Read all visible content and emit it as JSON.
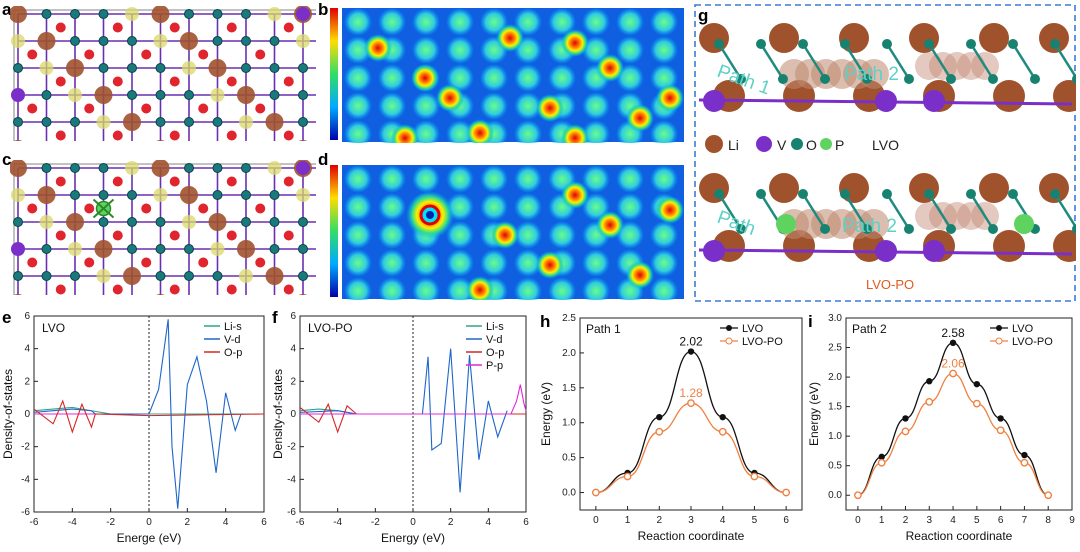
{
  "panel_labels": {
    "a": "a",
    "b": "b",
    "c": "c",
    "d": "d",
    "e": "e",
    "f": "f",
    "g": "g",
    "h": "h",
    "i": "i"
  },
  "structure_legend": {
    "li": "Li",
    "v": "V",
    "o": "O",
    "p": "P"
  },
  "structure_titles": {
    "top": "LVO",
    "bottom": "LVO-PO"
  },
  "path_labels": {
    "path1": "Path 1",
    "path2": "Path 2",
    "path1_bottom": "Path"
  },
  "colors": {
    "li": "#a0522d",
    "v": "#7b2fc9",
    "o": "#17826f",
    "p": "#5fd35f",
    "lvo_series": "#111111",
    "lvopo_series": "#f08040",
    "dashed_box": "#3a7bd5"
  },
  "chart_data": [
    {
      "id": "e",
      "type": "line",
      "panel_text": "LVO",
      "xlabel": "Energe (eV)",
      "ylabel": "Density-of-states",
      "xlim": [
        -6,
        6
      ],
      "ylim": [
        -6,
        6
      ],
      "xticks": [
        -6,
        -4,
        -2,
        0,
        2,
        4,
        6
      ],
      "yticks": [
        -6,
        -4,
        -2,
        0,
        2,
        4,
        6
      ],
      "legend": [
        "Li-s",
        "V-d",
        "O-p"
      ],
      "series": [
        {
          "name": "Li-s",
          "color": "#2ca58d",
          "x": [
            -6,
            -5,
            -4,
            -3,
            -2,
            0,
            2,
            4,
            6
          ],
          "values": [
            0.2,
            0.3,
            0.4,
            0.2,
            0,
            0,
            0,
            0,
            0
          ]
        },
        {
          "name": "V-d",
          "color": "#1f66c9",
          "x": [
            -6,
            -5,
            -4,
            -3,
            -2.8,
            0,
            0.5,
            1,
            1.2,
            1.5,
            2,
            2.5,
            3,
            3.5,
            4,
            4.5,
            4.8
          ],
          "values": [
            0.1,
            0.2,
            0.3,
            0.2,
            0,
            0,
            1.5,
            5.8,
            -2,
            -5.8,
            1.8,
            3.5,
            0.8,
            -3.6,
            1.3,
            -1,
            0
          ]
        },
        {
          "name": "O-p",
          "color": "#d62728",
          "x": [
            -6,
            -5,
            -4.5,
            -4,
            -3.5,
            -3,
            -2.8,
            0,
            6
          ],
          "values": [
            0.3,
            -0.6,
            0.8,
            -1.1,
            0.6,
            -0.8,
            0,
            -0.1,
            0
          ]
        }
      ]
    },
    {
      "id": "f",
      "type": "line",
      "panel_text": "LVO-PO",
      "xlabel": "Energy (eV)",
      "ylabel": "Density-of-states",
      "xlim": [
        -6,
        6
      ],
      "ylim": [
        -6,
        6
      ],
      "xticks": [
        -6,
        -4,
        -2,
        0,
        2,
        4,
        6
      ],
      "yticks": [
        -6,
        -4,
        -2,
        0,
        2,
        4,
        6
      ],
      "legend": [
        "Li-s",
        "V-d",
        "O-p",
        "P-p"
      ],
      "series": [
        {
          "name": "Li-s",
          "color": "#2ca58d",
          "x": [
            -6,
            -5,
            -4,
            -3,
            0,
            6
          ],
          "values": [
            0.2,
            0.3,
            0.2,
            0,
            0,
            0
          ]
        },
        {
          "name": "V-d",
          "color": "#1f66c9",
          "x": [
            -6,
            -4,
            -3,
            0.5,
            0.8,
            1,
            1.5,
            2,
            2.5,
            3,
            3.5,
            4,
            4.5,
            5
          ],
          "values": [
            0.1,
            0.2,
            0,
            0,
            3.5,
            -2.2,
            -1.8,
            4,
            -4.8,
            3.6,
            -2.8,
            0.8,
            -1.4,
            0.2
          ]
        },
        {
          "name": "O-p",
          "color": "#d62728",
          "x": [
            -6,
            -5,
            -4.5,
            -4,
            -3.5,
            -3,
            0,
            6
          ],
          "values": [
            0.4,
            -0.5,
            0.6,
            -1.1,
            0.5,
            0,
            0,
            0
          ]
        },
        {
          "name": "P-p",
          "color": "#e028d8",
          "x": [
            -6,
            5.2,
            5.5,
            5.7,
            5.9,
            6
          ],
          "values": [
            0,
            0,
            0.8,
            1.8,
            0.6,
            0.2
          ]
        }
      ]
    },
    {
      "id": "h",
      "type": "line",
      "title": "Path 1",
      "xlabel": "Reaction coordinate",
      "ylabel": "Energy (eV)",
      "xlim": [
        -0.5,
        6.5
      ],
      "ylim": [
        -0.25,
        2.5
      ],
      "xticks": [
        0,
        1,
        2,
        3,
        4,
        5,
        6
      ],
      "yticks": [
        0.0,
        0.5,
        1.0,
        1.5,
        2.0,
        2.5
      ],
      "categories": [
        0,
        1,
        2,
        3,
        4,
        5,
        6
      ],
      "series": [
        {
          "name": "LVO",
          "color": "#111111",
          "values": [
            0,
            0.28,
            1.08,
            2.02,
            1.08,
            0.28,
            0
          ]
        },
        {
          "name": "LVO-PO",
          "color": "#f08040",
          "values": [
            0,
            0.23,
            0.87,
            1.28,
            0.87,
            0.23,
            0
          ]
        }
      ],
      "annotations": [
        {
          "text": "2.02",
          "series": "LVO"
        },
        {
          "text": "1.28",
          "series": "LVO-PO"
        }
      ]
    },
    {
      "id": "i",
      "type": "line",
      "title": "Path 2",
      "xlabel": "Reaction coordinate",
      "ylabel": "Energy (eV)",
      "xlim": [
        -0.5,
        9
      ],
      "ylim": [
        -0.25,
        3.0
      ],
      "xticks": [
        0,
        1,
        2,
        3,
        4,
        5,
        6,
        7,
        8,
        9
      ],
      "yticks": [
        0.0,
        0.5,
        1.0,
        1.5,
        2.0,
        2.5,
        3.0
      ],
      "categories": [
        0,
        1,
        2,
        3,
        4,
        5,
        6,
        7,
        8
      ],
      "series": [
        {
          "name": "LVO",
          "color": "#111111",
          "values": [
            0,
            0.65,
            1.3,
            1.93,
            2.58,
            1.88,
            1.3,
            0.68,
            0
          ]
        },
        {
          "name": "LVO-PO",
          "color": "#f08040",
          "values": [
            0,
            0.55,
            1.08,
            1.58,
            2.06,
            1.55,
            1.1,
            0.55,
            0
          ]
        }
      ],
      "annotations": [
        {
          "text": "2.58",
          "series": "LVO"
        },
        {
          "text": "2.06",
          "series": "LVO-PO"
        }
      ]
    }
  ]
}
